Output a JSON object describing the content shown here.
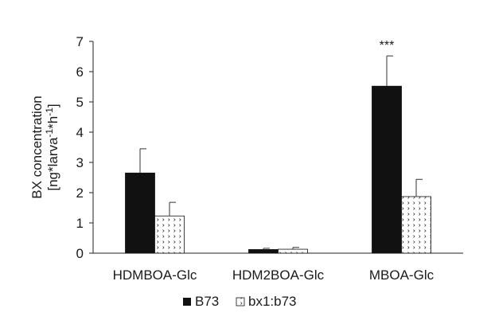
{
  "chart_data": {
    "type": "bar",
    "categories": [
      "HDMBOA-Glc",
      "HDM2BOA-Glc",
      "MBOA-Glc"
    ],
    "series": [
      {
        "name": "B73",
        "values": [
          2.65,
          0.12,
          5.52
        ],
        "errors": [
          0.8,
          0.04,
          1.0
        ],
        "color": "#111111",
        "pattern": "solid"
      },
      {
        "name": "bx1:b73",
        "values": [
          1.23,
          0.13,
          1.87
        ],
        "errors": [
          0.45,
          0.06,
          0.57
        ],
        "color": "#ffffff",
        "pattern": "dotted-chevron"
      }
    ],
    "ylabel_line1": "BX concentration",
    "ylabel_line2": "[ng*larva",
    "ylabel_sup1": "-1",
    "ylabel_mid": "*h",
    "ylabel_sup2": "-1",
    "ylabel_end": "]",
    "ylim": [
      0,
      7
    ],
    "yticks": [
      "0",
      "1",
      "2",
      "3",
      "4",
      "5",
      "6",
      "7"
    ],
    "annotations": [
      {
        "category": "MBOA-Glc",
        "series": "B73",
        "text": "***"
      }
    ],
    "legend_position": "bottom-center",
    "grid": false
  }
}
